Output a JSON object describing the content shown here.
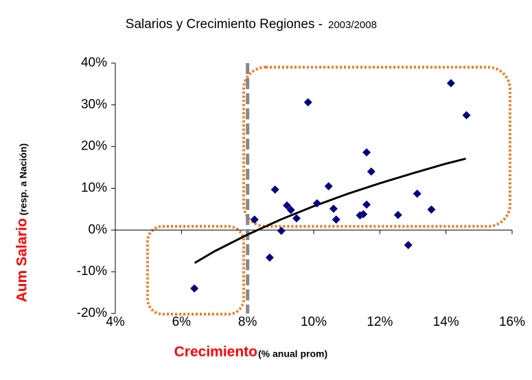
{
  "chart_data": {
    "type": "scatter",
    "title": "Salarios y Crecimiento Regiones -",
    "subtitle": "2003/2008",
    "x_label": "Crecimiento",
    "x_label_note": "(% anual prom)",
    "y_label": "Aum Salario",
    "y_label_note": "(resp. a Nación)",
    "xlim": [
      4,
      16
    ],
    "ylim": [
      -20,
      40
    ],
    "xticks": [
      {
        "value": 4,
        "label": "4%"
      },
      {
        "value": 6,
        "label": "6%"
      },
      {
        "value": 8,
        "label": "8%"
      },
      {
        "value": 10,
        "label": "10%"
      },
      {
        "value": 12,
        "label": "12%"
      },
      {
        "value": 14,
        "label": "14%"
      },
      {
        "value": 16,
        "label": "16%"
      }
    ],
    "yticks": [
      {
        "value": -20,
        "label": "-20%"
      },
      {
        "value": -10,
        "label": "-10%"
      },
      {
        "value": 0,
        "label": "0%"
      },
      {
        "value": 10,
        "label": "10%"
      },
      {
        "value": 20,
        "label": "20%"
      },
      {
        "value": 30,
        "label": "30%"
      },
      {
        "value": 40,
        "label": "40%"
      }
    ],
    "reference_line_x": 8,
    "color": "#000080",
    "x": [
      6.39,
      8.21,
      8.67,
      8.83,
      9.02,
      9.19,
      9.31,
      9.48,
      9.83,
      10.1,
      10.45,
      10.6,
      10.68,
      11.4,
      11.5,
      11.6,
      11.6,
      11.74,
      12.55,
      12.86,
      13.13,
      13.56,
      14.15,
      14.62
    ],
    "values": [
      -14.0,
      2.5,
      -6.6,
      9.7,
      -0.2,
      5.9,
      4.8,
      2.8,
      30.6,
      6.4,
      10.5,
      5.1,
      2.5,
      3.5,
      3.8,
      6.1,
      18.6,
      14.0,
      3.6,
      -3.6,
      8.7,
      4.9,
      35.2,
      27.5
    ],
    "trendline": {
      "x": [
        6.4,
        7,
        8,
        9,
        10,
        11,
        12,
        13,
        14,
        14.6
      ],
      "values": [
        -7.9,
        -5.1,
        -1.1,
        2.5,
        5.7,
        8.6,
        11.2,
        13.6,
        15.9,
        17.1
      ],
      "color": "#000000"
    }
  }
}
